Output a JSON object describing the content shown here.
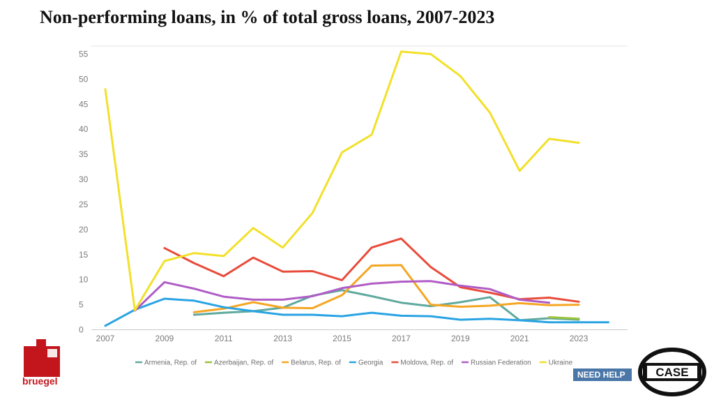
{
  "title": "Non-performing loans, in % of total gross loans, 2007-2023",
  "chart_data": {
    "type": "line",
    "title": "Non-performing loans, in % of total gross loans, 2007-2023",
    "xlabel": "",
    "ylabel": "",
    "xlim": [
      2007,
      2024
    ],
    "ylim": [
      0,
      55
    ],
    "x_ticks": [
      2007,
      2009,
      2011,
      2013,
      2015,
      2017,
      2019,
      2021,
      2023
    ],
    "y_ticks": [
      0,
      5,
      10,
      15,
      20,
      25,
      30,
      35,
      40,
      45,
      50,
      55
    ],
    "grid": false,
    "legend_position": "bottom",
    "series": [
      {
        "name": "Armenia, Rep. of",
        "color": "#5fa99e",
        "x": [
          2010,
          2011,
          2012,
          2013,
          2014,
          2015,
          2016,
          2017,
          2018,
          2019,
          2020,
          2021,
          2022,
          2023
        ],
        "y": [
          3.0,
          3.4,
          3.7,
          4.4,
          6.8,
          7.9,
          6.7,
          5.4,
          4.7,
          5.5,
          6.5,
          1.9,
          2.3,
          2.0
        ]
      },
      {
        "name": "Azerbaijan, Rep. of",
        "color": "#9cc23b",
        "x": [
          2022,
          2023
        ],
        "y": [
          2.5,
          2.2
        ]
      },
      {
        "name": "Belarus, Rep. of",
        "color": "#f5a623",
        "x": [
          2010,
          2011,
          2012,
          2013,
          2014,
          2015,
          2016,
          2017,
          2018,
          2019,
          2020,
          2021,
          2022,
          2023
        ],
        "y": [
          3.5,
          4.2,
          5.5,
          4.4,
          4.3,
          6.9,
          12.8,
          12.9,
          5.0,
          4.6,
          4.8,
          5.3,
          4.9,
          5.0
        ]
      },
      {
        "name": "Georgia",
        "color": "#29a3e3",
        "x": [
          2007,
          2008,
          2009,
          2010,
          2011,
          2012,
          2013,
          2014,
          2015,
          2016,
          2017,
          2018,
          2019,
          2020,
          2021,
          2022,
          2023,
          2024
        ],
        "y": [
          0.8,
          4.0,
          6.2,
          5.8,
          4.5,
          3.7,
          3.0,
          3.0,
          2.7,
          3.4,
          2.8,
          2.7,
          2.0,
          2.2,
          1.9,
          1.5,
          1.5,
          1.5
        ]
      },
      {
        "name": "Moldova, Rep. of",
        "color": "#e84b3a",
        "x": [
          2009,
          2010,
          2011,
          2012,
          2013,
          2014,
          2015,
          2016,
          2017,
          2018,
          2019,
          2020,
          2021,
          2022,
          2023
        ],
        "y": [
          16.3,
          13.3,
          10.7,
          14.4,
          11.6,
          11.7,
          9.9,
          16.4,
          18.2,
          12.5,
          8.5,
          7.4,
          6.1,
          6.4,
          5.6
        ]
      },
      {
        "name": "Russian Federation",
        "color": "#b05cc6",
        "x": [
          2008,
          2009,
          2010,
          2011,
          2012,
          2013,
          2014,
          2015,
          2016,
          2017,
          2018,
          2019,
          2020,
          2021,
          2022
        ],
        "y": [
          3.8,
          9.5,
          8.2,
          6.6,
          6.0,
          6.0,
          6.7,
          8.3,
          9.2,
          9.6,
          9.7,
          8.8,
          8.1,
          6.0,
          5.4
        ]
      },
      {
        "name": "Ukraine",
        "color": "#f2e02a",
        "x": [
          2007,
          2008,
          2009,
          2010,
          2011,
          2012,
          2013,
          2014,
          2015,
          2016,
          2017,
          2018,
          2019,
          2020,
          2021,
          2022,
          2023
        ],
        "y": [
          48.0,
          3.9,
          13.7,
          15.3,
          14.7,
          20.3,
          16.4,
          23.3,
          35.4,
          38.9,
          55.5,
          55.0,
          50.6,
          43.3,
          31.7,
          38.1,
          37.3
        ]
      }
    ]
  },
  "brand": {
    "left_logo_text": "bruegel",
    "left_logo_color": "#c3161c",
    "right_logo_text": "CASE",
    "help_button": "NEED HELP"
  }
}
